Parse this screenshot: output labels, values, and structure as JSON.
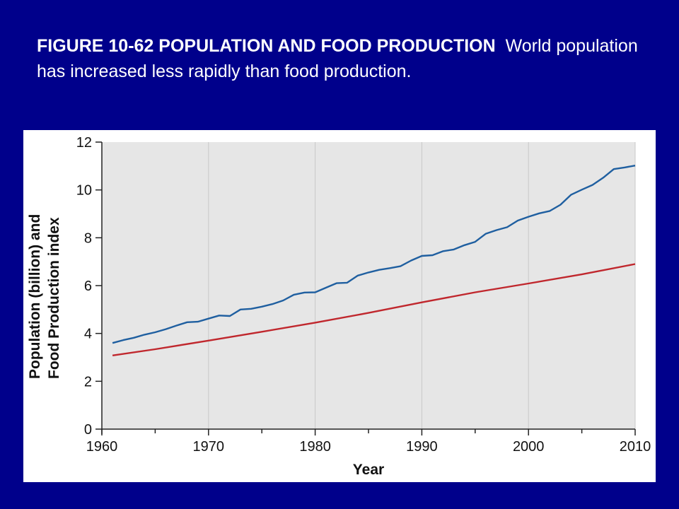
{
  "caption": {
    "figure_label": "FIGURE 10-62 POPULATION AND FOOD PRODUCTION",
    "text": "World population has increased less rapidly than food production."
  },
  "colors": {
    "slide_background": "#00008b",
    "plot_background": "#e6e6e6",
    "food_production_line": "#1f5fa0",
    "population_line": "#c0272d"
  },
  "chart_data": {
    "type": "line",
    "title": "",
    "xlabel": "Year",
    "ylabel_lines": [
      "Population (billion) and",
      "Food Production index"
    ],
    "xlim": [
      1960,
      2010
    ],
    "ylim": [
      0,
      12
    ],
    "x_ticks": [
      1960,
      1970,
      1980,
      1990,
      2000,
      2010
    ],
    "y_ticks": [
      0,
      2,
      4,
      6,
      8,
      10,
      12
    ],
    "grid": "vertical",
    "legend": "none",
    "series": [
      {
        "color": "#1f5fa0",
        "x": [
          1961,
          1962,
          1963,
          1964,
          1965,
          1966,
          1967,
          1968,
          1969,
          1970,
          1971,
          1972,
          1973,
          1974,
          1975,
          1976,
          1977,
          1978,
          1979,
          1980,
          1981,
          1982,
          1983,
          1984,
          1985,
          1986,
          1987,
          1988,
          1989,
          1990,
          1991,
          1992,
          1993,
          1994,
          1995,
          1996,
          1997,
          1998,
          1999,
          2000,
          2001,
          2002,
          2003,
          2004,
          2005,
          2006,
          2007,
          2008,
          2009,
          2010
        ],
        "y": [
          3.6,
          3.72,
          3.82,
          3.95,
          4.05,
          4.18,
          4.33,
          4.47,
          4.49,
          4.62,
          4.75,
          4.73,
          5.0,
          5.03,
          5.12,
          5.23,
          5.38,
          5.62,
          5.71,
          5.72,
          5.91,
          6.1,
          6.12,
          6.42,
          6.55,
          6.66,
          6.73,
          6.81,
          7.05,
          7.24,
          7.27,
          7.44,
          7.51,
          7.69,
          7.83,
          8.17,
          8.32,
          8.44,
          8.72,
          8.88,
          9.02,
          9.12,
          9.38,
          9.8,
          10.01,
          10.21,
          10.51,
          10.87,
          10.94,
          11.02
        ]
      },
      {
        "color": "#c0272d",
        "x": [
          1961,
          1965,
          1970,
          1975,
          1980,
          1985,
          1990,
          1995,
          2000,
          2005,
          2010
        ],
        "y": [
          3.08,
          3.34,
          3.7,
          4.07,
          4.45,
          4.86,
          5.3,
          5.72,
          6.09,
          6.47,
          6.9
        ]
      }
    ]
  }
}
